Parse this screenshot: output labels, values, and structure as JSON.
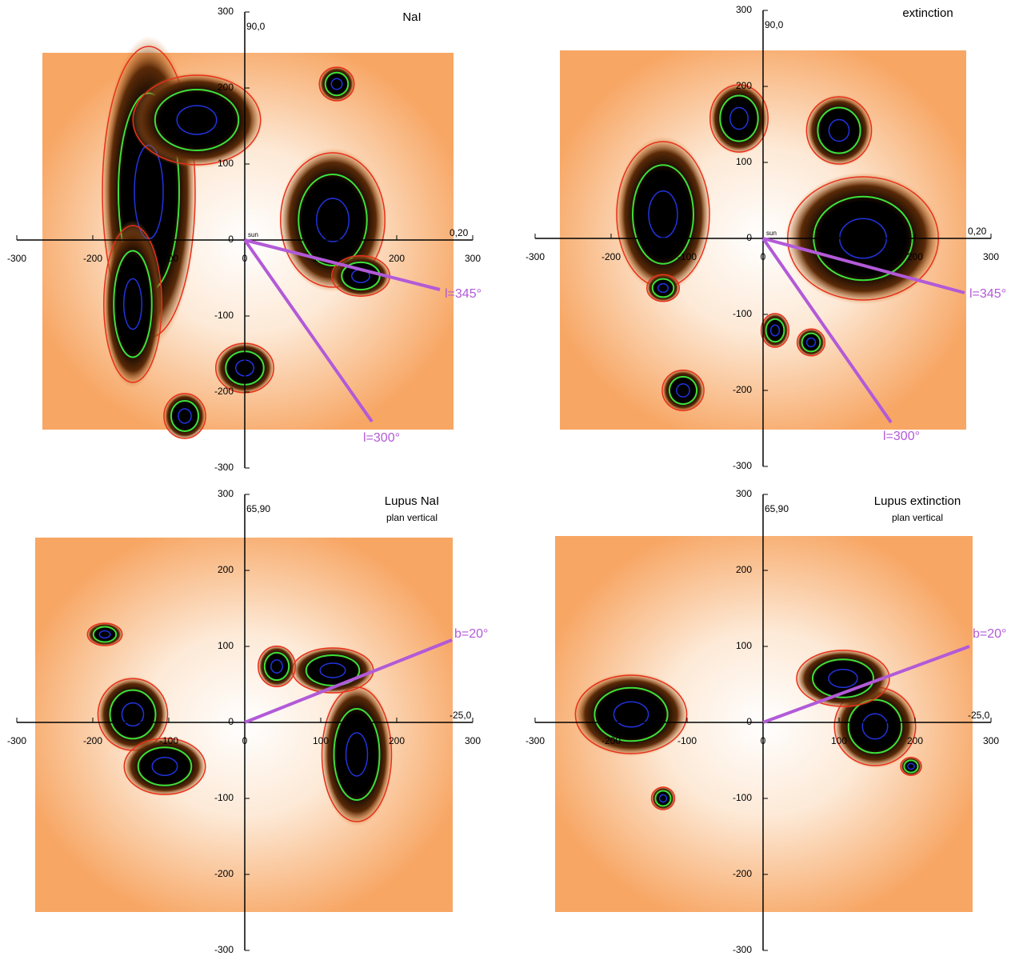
{
  "chart_data": [
    {
      "type": "map",
      "title": "NaI",
      "top_label": "90,0",
      "right_label": "0,20",
      "origin_label": "sun",
      "rays": [
        {
          "label": "l=345°"
        },
        {
          "label": "l=300°"
        }
      ],
      "xlim": [
        -300,
        300
      ],
      "ylim": [
        -300,
        300
      ],
      "xticks": [
        -300,
        -200,
        -100,
        0,
        100,
        200,
        300
      ],
      "yticks": [
        -300,
        -200,
        -100,
        0,
        100,
        200,
        300
      ]
    },
    {
      "type": "map",
      "title": "extinction",
      "top_label": "90,0",
      "right_label": "0,20",
      "origin_label": "sun",
      "rays": [
        {
          "label": "l=345°"
        },
        {
          "label": "l=300°"
        }
      ],
      "xlim": [
        -300,
        300
      ],
      "ylim": [
        -300,
        300
      ],
      "xticks": [
        -300,
        -200,
        -100,
        0,
        100,
        200,
        300
      ],
      "yticks": [
        -300,
        -200,
        -100,
        0,
        100,
        200,
        300
      ]
    },
    {
      "type": "map",
      "title": "Lupus NaI",
      "subtitle": "plan vertical",
      "top_label": "65,90",
      "right_label": "-25,0",
      "rays": [
        {
          "label": "b=20°"
        }
      ],
      "xlim": [
        -300,
        300
      ],
      "ylim": [
        -300,
        300
      ],
      "xticks": [
        -300,
        -200,
        -100,
        0,
        100,
        200,
        300
      ],
      "yticks": [
        -300,
        -200,
        -100,
        0,
        100,
        200,
        300
      ]
    },
    {
      "type": "map",
      "title": "Lupus extinction",
      "subtitle": "plan vertical",
      "top_label": "65,90",
      "right_label": "-25,0",
      "rays": [
        {
          "label": "b=20°"
        }
      ],
      "xlim": [
        -300,
        300
      ],
      "ylim": [
        -300,
        300
      ],
      "xticks": [
        -300,
        -200,
        -100,
        0,
        100,
        200,
        300
      ],
      "yticks": [
        -300,
        -200,
        -100,
        0,
        100,
        200,
        300
      ]
    }
  ]
}
